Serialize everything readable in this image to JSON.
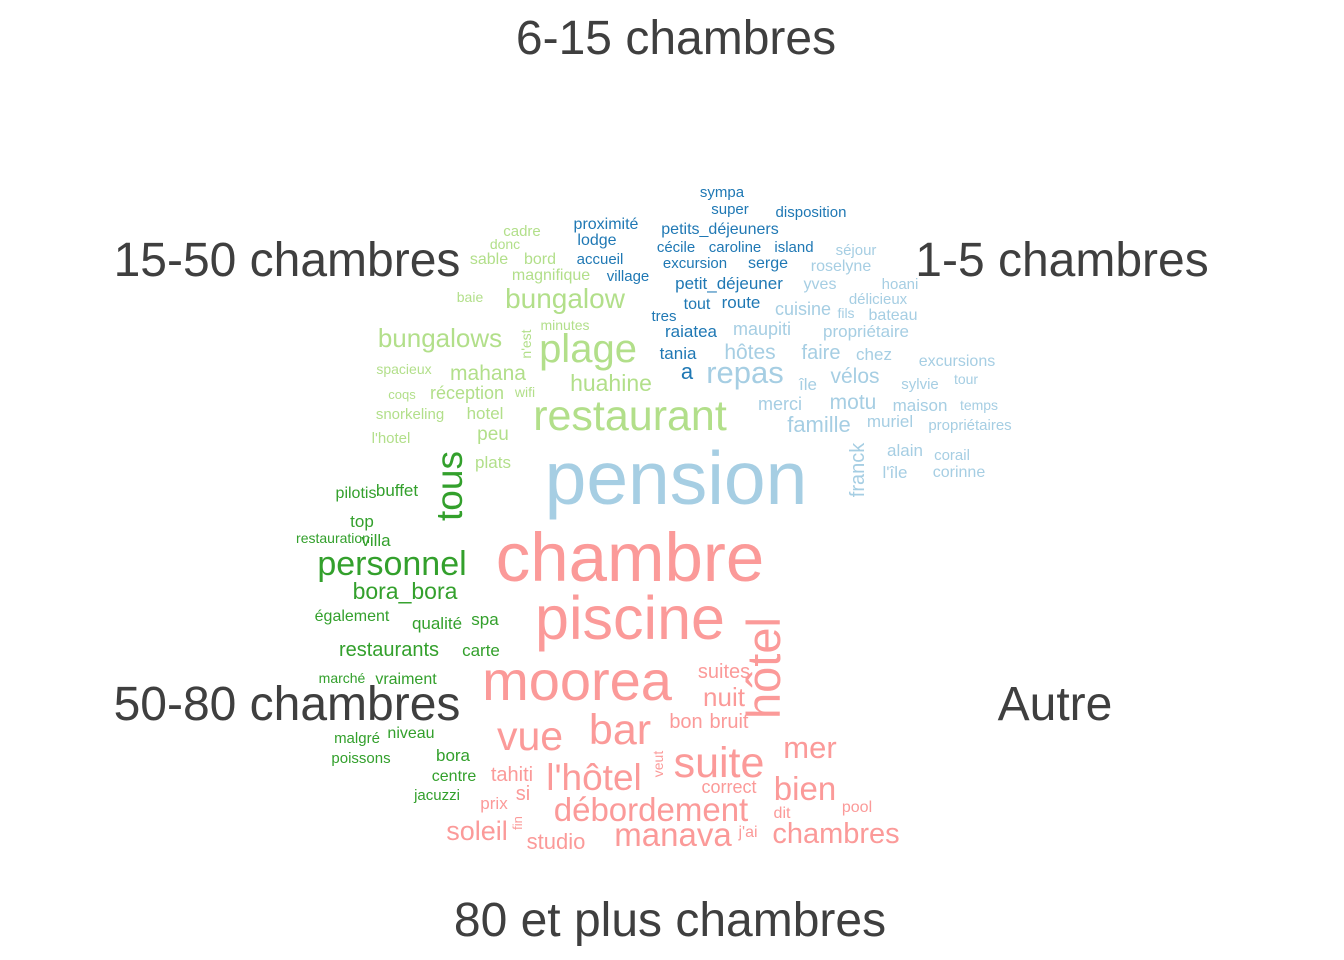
{
  "chart_data": {
    "type": "comparison_wordcloud",
    "groups": [
      {
        "name": "6-15 chambres",
        "color": "#1F78B4",
        "words": [
          "sympa",
          "super",
          "disposition",
          "proximité",
          "petits_déjeuners",
          "lodge",
          "cécile",
          "caroline",
          "island",
          "accueil",
          "excursion",
          "serge",
          "village",
          "petit_déjeuner",
          "tout",
          "route",
          "tres",
          "raiatea",
          "tania",
          "a"
        ]
      },
      {
        "name": "1-5 chambres",
        "color": "#A6CEE3",
        "words": [
          "séjour",
          "roselyne",
          "hoani",
          "yves",
          "délicieux",
          "cuisine",
          "fils",
          "bateau",
          "maupiti",
          "propriétaire",
          "hôtes",
          "faire",
          "chez",
          "repas",
          "excursions",
          "île",
          "vélos",
          "sylvie",
          "tour",
          "merci",
          "motu",
          "maison",
          "temps",
          "famille",
          "muriel",
          "propriétaires",
          "franck",
          "alain",
          "corail",
          "l'île",
          "corinne",
          "pension"
        ]
      },
      {
        "name": "15-50 chambres",
        "color": "#B2DF8A",
        "words": [
          "cadre",
          "donc",
          "sable",
          "bord",
          "magnifique",
          "baie",
          "bungalow",
          "minutes",
          "bungalows",
          "plage",
          "n'est",
          "spacieux",
          "mahana",
          "huahine",
          "coqs",
          "réception",
          "wifi",
          "snorkeling",
          "hotel",
          "restaurant",
          "peu",
          "l'hotel",
          "plats"
        ]
      },
      {
        "name": "50-80 chambres",
        "color": "#33A02C",
        "words": [
          "pilotis",
          "buffet",
          "top",
          "restauration",
          "villa",
          "tous",
          "personnel",
          "bora_bora",
          "également",
          "qualité",
          "spa",
          "restaurants",
          "carte",
          "marché",
          "vraiment",
          "malgré",
          "niveau",
          "bora",
          "poissons",
          "centre",
          "jacuzzi"
        ]
      },
      {
        "name": "80 et plus chambres",
        "color": "#FB9A99",
        "words": [
          "chambre",
          "piscine",
          "hôtel",
          "moorea",
          "suites",
          "nuit",
          "vue",
          "bar",
          "bon",
          "bruit",
          "mer",
          "veut",
          "tahiti",
          "l'hôtel",
          "suite",
          "correct",
          "bien",
          "si",
          "prix",
          "fin",
          "débordement",
          "dit",
          "pool",
          "soleil",
          "manava",
          "j'ai",
          "chambres",
          "studio"
        ]
      },
      {
        "name": "Autre",
        "color": "#E31A1C",
        "words": []
      }
    ]
  }
}
